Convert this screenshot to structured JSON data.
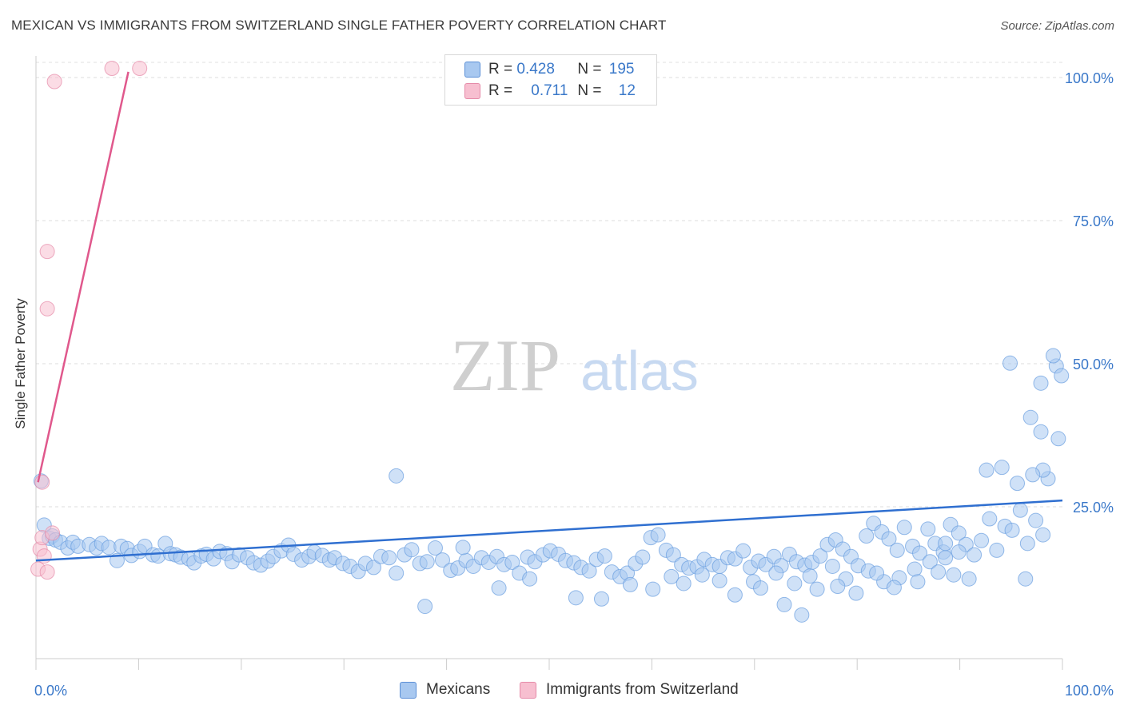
{
  "title": "MEXICAN VS IMMIGRANTS FROM SWITZERLAND SINGLE FATHER POVERTY CORRELATION CHART",
  "source": "Source: ZipAtlas.com",
  "watermark": {
    "zip": "ZIP",
    "atlas": "atlas"
  },
  "legend": {
    "rows": [
      {
        "r_label": "R =",
        "r_value": "0.428",
        "n_label": "N =",
        "n_value": "195",
        "color": "#a8c8f0",
        "border": "#5b8fd6"
      },
      {
        "r_label": "R =",
        "r_value": "0.711",
        "n_label": "N =",
        "n_value": "12",
        "color": "#f7bfd0",
        "border": "#e58aa8"
      }
    ]
  },
  "bottom_legend": [
    {
      "label": "Mexicans",
      "color": "#a8c8f0",
      "border": "#5b8fd6"
    },
    {
      "label": "Immigrants from Switzerland",
      "color": "#f7bfd0",
      "border": "#e58aa8"
    }
  ],
  "chart_data": {
    "type": "scatter",
    "xlabel": "",
    "ylabel": "Single Father Poverty",
    "xlim": [
      0,
      100
    ],
    "ylim": [
      0,
      100
    ],
    "x_tick_labels": [
      "0.0%",
      "100.0%"
    ],
    "y_tick_labels": [
      "25.0%",
      "50.0%",
      "75.0%",
      "100.0%"
    ],
    "y_ticks": [
      25,
      50,
      75,
      100
    ],
    "grid": true,
    "legend_position": "top-center",
    "series": [
      {
        "name": "Mexicans",
        "color": "#a8c8f0",
        "stroke": "#6a9ee0",
        "trend": {
          "x": [
            0,
            100
          ],
          "y": [
            15.6,
            26.1
          ],
          "color": "#2f6fd0"
        },
        "points": [
          [
            0.5,
            29.5
          ],
          [
            0.8,
            21.8
          ],
          [
            1.3,
            19.5
          ],
          [
            1.6,
            19.9
          ],
          [
            1.9,
            19.2
          ],
          [
            2.4,
            18.8
          ],
          [
            3.1,
            17.8
          ],
          [
            3.6,
            18.8
          ],
          [
            4.1,
            18.1
          ],
          [
            5.2,
            18.4
          ],
          [
            5.9,
            17.8
          ],
          [
            6.4,
            18.6
          ],
          [
            7.1,
            17.9
          ],
          [
            7.9,
            15.6
          ],
          [
            8.3,
            18.1
          ],
          [
            8.9,
            17.7
          ],
          [
            9.3,
            16.5
          ],
          [
            10.1,
            17.2
          ],
          [
            10.6,
            18.1
          ],
          [
            11.4,
            16.6
          ],
          [
            11.9,
            16.4
          ],
          [
            12.6,
            18.6
          ],
          [
            13.1,
            16.8
          ],
          [
            13.6,
            16.6
          ],
          [
            14.1,
            16.2
          ],
          [
            14.9,
            15.9
          ],
          [
            15.4,
            15.2
          ],
          [
            16.1,
            16.4
          ],
          [
            16.6,
            16.7
          ],
          [
            17.3,
            15.9
          ],
          [
            17.9,
            17.2
          ],
          [
            18.6,
            16.8
          ],
          [
            19.1,
            15.4
          ],
          [
            19.8,
            16.6
          ],
          [
            20.6,
            16.1
          ],
          [
            21.2,
            15.2
          ],
          [
            21.9,
            14.8
          ],
          [
            22.6,
            15.5
          ],
          [
            23.1,
            16.3
          ],
          [
            23.9,
            17.3
          ],
          [
            24.6,
            18.3
          ],
          [
            25.1,
            16.7
          ],
          [
            25.9,
            15.7
          ],
          [
            26.6,
            16.3
          ],
          [
            27.1,
            17.1
          ],
          [
            27.9,
            16.5
          ],
          [
            28.6,
            15.7
          ],
          [
            29.1,
            16.1
          ],
          [
            29.9,
            15.1
          ],
          [
            30.6,
            14.6
          ],
          [
            31.4,
            13.7
          ],
          [
            32.1,
            15.1
          ],
          [
            32.9,
            14.4
          ],
          [
            33.6,
            16.3
          ],
          [
            34.4,
            16.1
          ],
          [
            35.1,
            13.4
          ],
          [
            35.9,
            16.6
          ],
          [
            36.6,
            17.5
          ],
          [
            37.4,
            15.1
          ],
          [
            38.1,
            15.4
          ],
          [
            38.9,
            17.8
          ],
          [
            39.6,
            15.7
          ],
          [
            40.4,
            13.9
          ],
          [
            41.1,
            14.3
          ],
          [
            41.9,
            15.6
          ],
          [
            42.6,
            14.6
          ],
          [
            43.4,
            16.1
          ],
          [
            44.1,
            15.3
          ],
          [
            44.9,
            16.3
          ],
          [
            45.6,
            14.9
          ],
          [
            46.4,
            15.3
          ],
          [
            47.1,
            13.4
          ],
          [
            47.9,
            16.2
          ],
          [
            48.6,
            15.4
          ],
          [
            49.4,
            16.6
          ],
          [
            50.1,
            17.3
          ],
          [
            50.9,
            16.7
          ],
          [
            51.6,
            15.6
          ],
          [
            52.4,
            15.2
          ],
          [
            53.1,
            14.4
          ],
          [
            53.9,
            13.8
          ],
          [
            54.6,
            15.8
          ],
          [
            55.4,
            16.4
          ],
          [
            56.1,
            13.6
          ],
          [
            56.9,
            12.8
          ],
          [
            57.6,
            13.4
          ],
          [
            58.4,
            15.1
          ],
          [
            59.1,
            16.2
          ],
          [
            59.9,
            19.6
          ],
          [
            60.6,
            20.1
          ],
          [
            61.4,
            17.4
          ],
          [
            62.1,
            16.6
          ],
          [
            62.9,
            14.9
          ],
          [
            63.6,
            14.3
          ],
          [
            64.4,
            14.5
          ],
          [
            65.1,
            15.8
          ],
          [
            65.9,
            14.9
          ],
          [
            66.6,
            14.6
          ],
          [
            67.4,
            16.1
          ],
          [
            68.1,
            15.9
          ],
          [
            68.9,
            17.3
          ],
          [
            69.6,
            14.4
          ],
          [
            70.4,
            15.5
          ],
          [
            71.1,
            14.9
          ],
          [
            71.9,
            16.3
          ],
          [
            72.6,
            14.7
          ],
          [
            73.4,
            16.7
          ],
          [
            74.1,
            15.4
          ],
          [
            74.9,
            14.8
          ],
          [
            75.6,
            15.3
          ],
          [
            76.4,
            16.4
          ],
          [
            77.1,
            18.4
          ],
          [
            77.9,
            19.2
          ],
          [
            78.6,
            17.6
          ],
          [
            79.4,
            16.3
          ],
          [
            80.1,
            14.7
          ],
          [
            80.9,
            19.9
          ],
          [
            81.6,
            22.1
          ],
          [
            82.4,
            20.6
          ],
          [
            83.1,
            19.4
          ],
          [
            83.9,
            17.4
          ],
          [
            84.6,
            21.4
          ],
          [
            85.4,
            18.1
          ],
          [
            86.1,
            16.9
          ],
          [
            86.9,
            21.1
          ],
          [
            87.6,
            18.6
          ],
          [
            88.4,
            17.1
          ],
          [
            89.1,
            21.9
          ],
          [
            89.9,
            20.4
          ],
          [
            90.6,
            18.4
          ],
          [
            91.4,
            16.6
          ],
          [
            92.1,
            19.1
          ],
          [
            92.9,
            22.9
          ],
          [
            93.6,
            17.4
          ],
          [
            94.4,
            21.6
          ],
          [
            95.1,
            20.9
          ],
          [
            95.9,
            24.4
          ],
          [
            96.6,
            18.6
          ],
          [
            97.4,
            22.6
          ],
          [
            98.1,
            20.1
          ],
          [
            35.1,
            30.4
          ],
          [
            37.9,
            7.6
          ],
          [
            41.6,
            17.9
          ],
          [
            45.1,
            10.8
          ],
          [
            48.1,
            12.4
          ],
          [
            52.6,
            9.1
          ],
          [
            55.1,
            8.9
          ],
          [
            57.9,
            11.4
          ],
          [
            60.1,
            10.6
          ],
          [
            61.9,
            12.8
          ],
          [
            63.1,
            11.6
          ],
          [
            64.9,
            13.1
          ],
          [
            66.6,
            12.1
          ],
          [
            68.1,
            9.6
          ],
          [
            69.9,
            11.9
          ],
          [
            72.1,
            13.4
          ],
          [
            73.9,
            11.6
          ],
          [
            75.4,
            12.9
          ],
          [
            77.6,
            14.6
          ],
          [
            78.9,
            12.4
          ],
          [
            81.1,
            13.8
          ],
          [
            82.6,
            11.9
          ],
          [
            84.1,
            12.6
          ],
          [
            85.6,
            14.1
          ],
          [
            87.1,
            15.4
          ],
          [
            88.6,
            16.1
          ],
          [
            89.9,
            17.1
          ],
          [
            70.6,
            10.8
          ],
          [
            72.9,
            7.9
          ],
          [
            74.6,
            6.1
          ],
          [
            76.1,
            10.6
          ],
          [
            78.1,
            11.1
          ],
          [
            79.9,
            9.9
          ],
          [
            81.9,
            13.4
          ],
          [
            83.6,
            10.9
          ],
          [
            85.9,
            11.9
          ],
          [
            87.9,
            13.6
          ],
          [
            88.6,
            18.6
          ],
          [
            89.4,
            13.1
          ],
          [
            90.9,
            12.4
          ],
          [
            92.6,
            31.4
          ],
          [
            94.1,
            31.9
          ],
          [
            95.6,
            29.1
          ],
          [
            96.9,
            40.6
          ],
          [
            97.9,
            38.1
          ],
          [
            98.6,
            29.9
          ],
          [
            99.4,
            49.6
          ],
          [
            99.9,
            47.9
          ],
          [
            98.1,
            31.4
          ],
          [
            97.1,
            30.6
          ],
          [
            99.1,
            51.4
          ],
          [
            97.9,
            46.6
          ],
          [
            99.6,
            36.9
          ],
          [
            96.4,
            12.4
          ],
          [
            94.9,
            50.1
          ]
        ]
      },
      {
        "name": "Immigrants from Switzerland",
        "color": "#f7bfd0",
        "stroke": "#e58aa8",
        "trend": {
          "x": [
            0.2,
            9.0
          ],
          "y": [
            29.3,
            101.0
          ],
          "color": "#e0588c"
        },
        "points": [
          [
            0.2,
            14.1
          ],
          [
            0.4,
            17.6
          ],
          [
            0.6,
            19.6
          ],
          [
            0.8,
            16.4
          ],
          [
            1.1,
            13.6
          ],
          [
            1.6,
            20.4
          ],
          [
            0.6,
            29.3
          ],
          [
            1.1,
            69.6
          ],
          [
            1.1,
            59.6
          ],
          [
            1.8,
            99.3
          ],
          [
            7.4,
            101.6
          ],
          [
            10.1,
            101.6
          ]
        ]
      }
    ]
  }
}
